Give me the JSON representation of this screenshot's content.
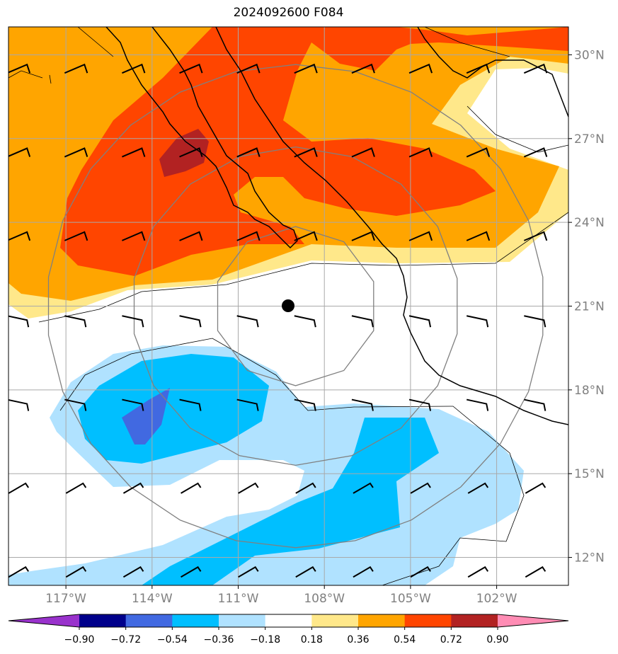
{
  "title": "2024092600 F084",
  "map": {
    "lat_range": [
      11,
      31
    ],
    "lon_range": [
      -119,
      -99.5
    ],
    "lat_ticks": [
      {
        "value": 30,
        "label": "30°N"
      },
      {
        "value": 27,
        "label": "27°N"
      },
      {
        "value": 24,
        "label": "24°N"
      },
      {
        "value": 21,
        "label": "21°N"
      },
      {
        "value": 18,
        "label": "18°N"
      },
      {
        "value": 15,
        "label": "15°N"
      },
      {
        "value": 12,
        "label": "12°N"
      }
    ],
    "lon_ticks": [
      {
        "value": -117,
        "label": "117°W"
      },
      {
        "value": -114,
        "label": "114°W"
      },
      {
        "value": -111,
        "label": "111°W"
      },
      {
        "value": -108,
        "label": "108°W"
      },
      {
        "value": -105,
        "label": "105°W"
      },
      {
        "value": -102,
        "label": "102°W"
      }
    ],
    "center_marker": {
      "lon": -109.0,
      "lat": 21.0
    },
    "range_rings_deg": [
      2.8,
      5.6,
      8.5
    ],
    "colors": {
      "gridlines": "#a9a9a9",
      "rings": "#808080",
      "tick_labels": "#808080",
      "coastline": "#000000"
    }
  },
  "colorbar": {
    "labels": [
      "−0.90",
      "−0.72",
      "−0.54",
      "−0.36",
      "−0.18",
      "0.18",
      "0.36",
      "0.54",
      "0.72",
      "0.90"
    ],
    "colors": [
      "#9932cc",
      "#00008b",
      "#4169e1",
      "#00bfff",
      "#b0e2ff",
      "#ffffff",
      "#ffe88a",
      "#ffa500",
      "#ff4500",
      "#b22222",
      "#ff8cb4"
    ]
  }
}
